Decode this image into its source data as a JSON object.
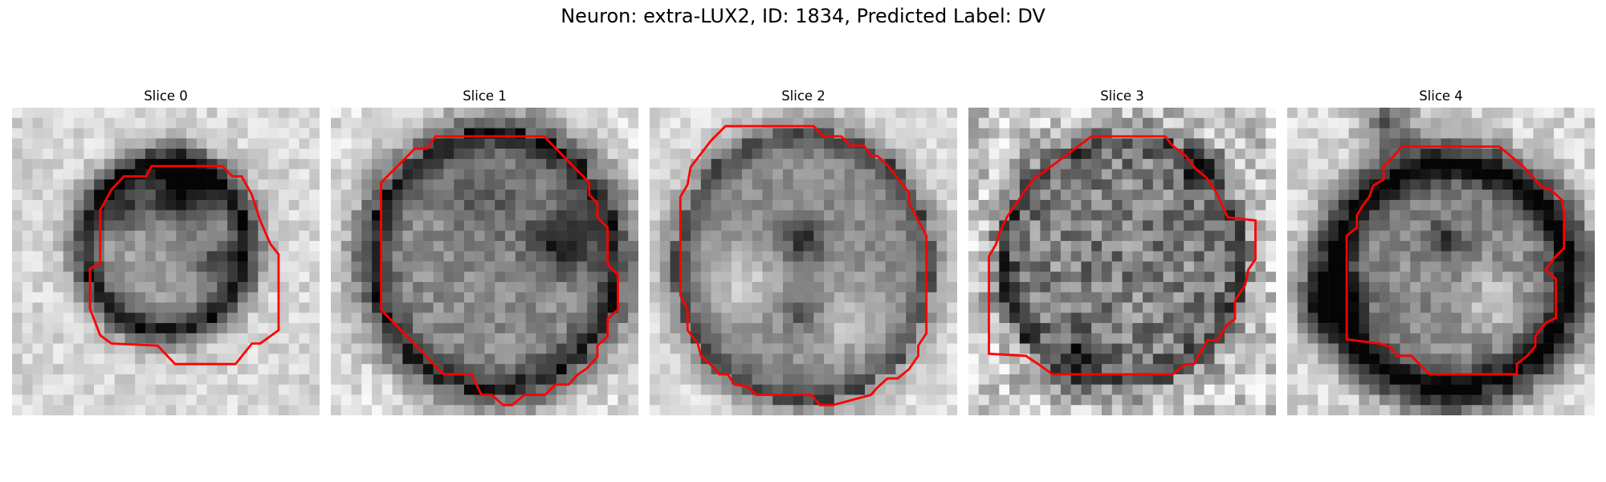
{
  "figure": {
    "title": "Neuron: extra-LUX2, ID: 1834, Predicted Label: DV"
  },
  "panels": [
    {
      "title": "Slice 0"
    },
    {
      "title": "Slice 1"
    },
    {
      "title": "Slice 2"
    },
    {
      "title": "Slice 3"
    },
    {
      "title": "Slice 4"
    }
  ],
  "colors": {
    "contour": "#ff0000",
    "background": "#ffffff",
    "colormap": "gray"
  }
}
